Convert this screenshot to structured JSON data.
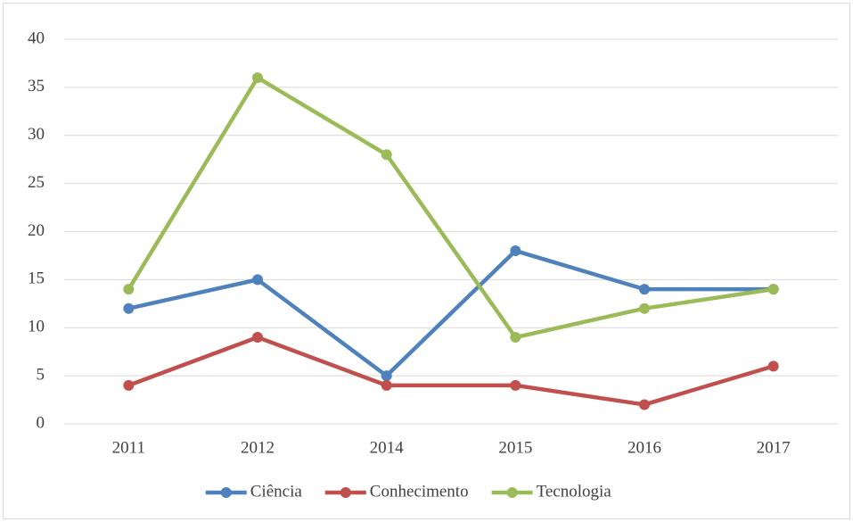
{
  "chart_data": {
    "type": "line",
    "categories": [
      "2011",
      "2012",
      "2014",
      "2015",
      "2016",
      "2017"
    ],
    "series": [
      {
        "name": "Ciência",
        "color": "#4f81bd",
        "values": [
          12,
          15,
          5,
          18,
          14,
          14
        ]
      },
      {
        "name": "Conhecimento",
        "color": "#c0504d",
        "values": [
          4,
          9,
          4,
          4,
          2,
          6
        ]
      },
      {
        "name": "Tecnologia",
        "color": "#9bbb59",
        "values": [
          14,
          36,
          28,
          9,
          12,
          14
        ]
      }
    ],
    "ylim": [
      0,
      40
    ],
    "yticks": [
      0,
      5,
      10,
      15,
      20,
      25,
      30,
      35,
      40
    ],
    "grid": true,
    "legend": "bottom"
  }
}
